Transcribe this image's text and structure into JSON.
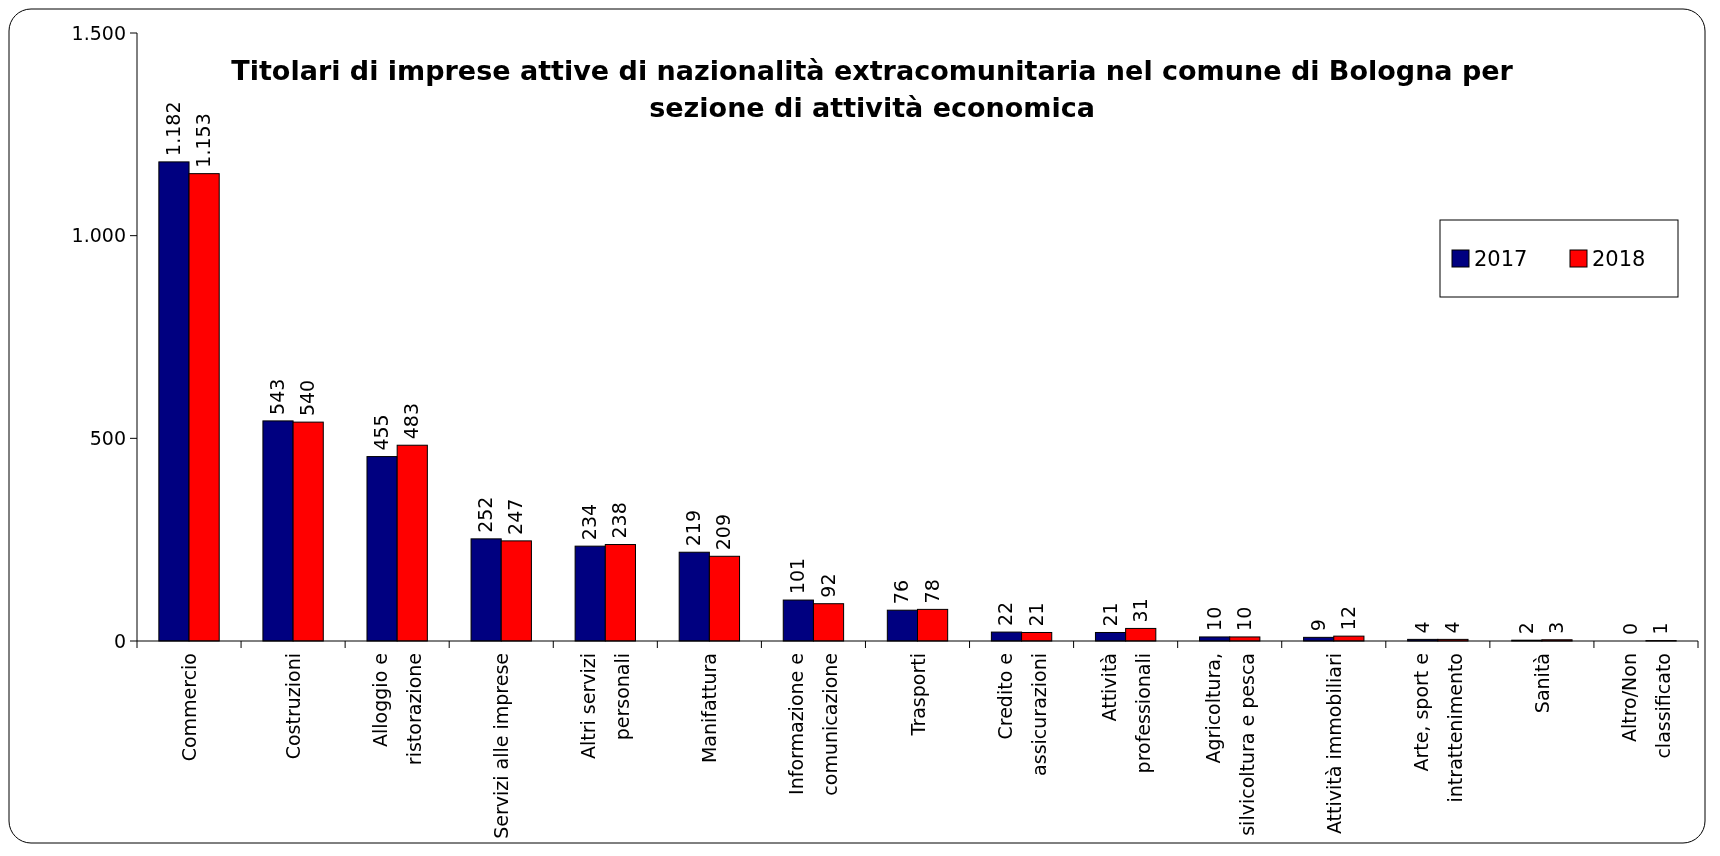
{
  "chart_data": {
    "type": "bar",
    "title": "Titolari di imprese attive di nazionalità extracomunitaria nel comune di Bologna per\nsezione di attività economica",
    "categories": [
      "Commercio",
      "Costruzioni",
      "Alloggio e\nristorazione",
      "Servizi alle imprese",
      "Altri servizi\npersonali",
      "Manifattura",
      "Informazione e\ncomunicazione",
      "Trasporti",
      "Credito e\nassicurazioni",
      "Attività\nprofessionali",
      "Agricoltura,\nsilvicoltura e pesca",
      "Attività immobiliari",
      "Arte, sport e\nintrattenimento",
      "Sanità",
      "Altro/Non\nclassificato"
    ],
    "series": [
      {
        "name": "2017",
        "color": "#000080",
        "values": [
          1182,
          543,
          455,
          252,
          234,
          219,
          101,
          76,
          22,
          21,
          10,
          9,
          4,
          2,
          0
        ],
        "value_labels": [
          "1.182",
          "543",
          "455",
          "252",
          "234",
          "219",
          "101",
          "76",
          "22",
          "21",
          "10",
          "9",
          "4",
          "2",
          "0"
        ]
      },
      {
        "name": "2018",
        "color": "#ff0000",
        "values": [
          1153,
          540,
          483,
          247,
          238,
          209,
          92,
          78,
          21,
          31,
          10,
          12,
          4,
          3,
          1
        ],
        "value_labels": [
          "1.153",
          "540",
          "483",
          "247",
          "238",
          "209",
          "92",
          "78",
          "21",
          "31",
          "10",
          "12",
          "4",
          "3",
          "1"
        ]
      }
    ],
    "ylim": [
      0,
      1500
    ],
    "yticks": [
      {
        "value": 0,
        "label": "0"
      },
      {
        "value": 500,
        "label": "500"
      },
      {
        "value": 1000,
        "label": "1.000"
      },
      {
        "value": 1500,
        "label": "1.500"
      }
    ],
    "grid": false,
    "legend": "top right"
  }
}
